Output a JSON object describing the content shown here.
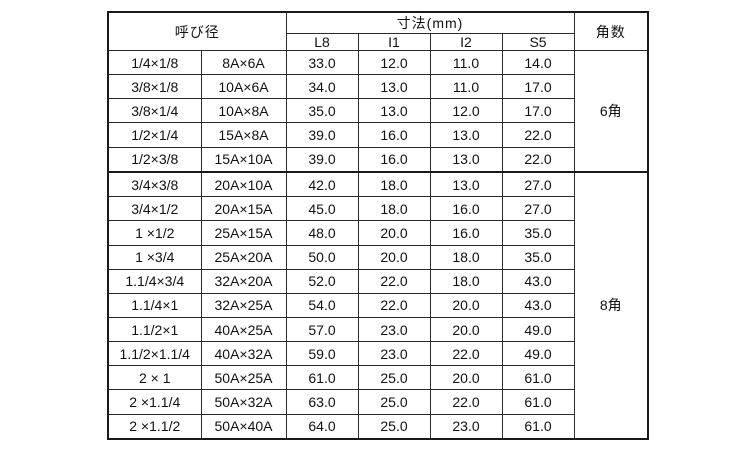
{
  "table": {
    "header": {
      "nominal": "呼び径",
      "dimensions": "寸法(mm)",
      "sub": [
        "L8",
        "I1",
        "I2",
        "S5"
      ],
      "angles": "角数"
    },
    "groups": [
      {
        "angle": "6角",
        "rows": [
          {
            "nominal": "1/4×1/8",
            "a_size": "8A×6A",
            "L8": "33.0",
            "I1": "12.0",
            "I2": "11.0",
            "S5": "14.0"
          },
          {
            "nominal": "3/8×1/8",
            "a_size": "10A×6A",
            "L8": "34.0",
            "I1": "13.0",
            "I2": "11.0",
            "S5": "17.0"
          },
          {
            "nominal": "3/8×1/4",
            "a_size": "10A×8A",
            "L8": "35.0",
            "I1": "13.0",
            "I2": "12.0",
            "S5": "17.0"
          },
          {
            "nominal": "1/2×1/4",
            "a_size": "15A×8A",
            "L8": "39.0",
            "I1": "16.0",
            "I2": "13.0",
            "S5": "22.0"
          },
          {
            "nominal": "1/2×3/8",
            "a_size": "15A×10A",
            "L8": "39.0",
            "I1": "16.0",
            "I2": "13.0",
            "S5": "22.0"
          }
        ]
      },
      {
        "angle": "8角",
        "rows": [
          {
            "nominal": "3/4×3/8",
            "a_size": "20A×10A",
            "L8": "42.0",
            "I1": "18.0",
            "I2": "13.0",
            "S5": "27.0"
          },
          {
            "nominal": "3/4×1/2",
            "a_size": "20A×15A",
            "L8": "45.0",
            "I1": "18.0",
            "I2": "16.0",
            "S5": "27.0"
          },
          {
            "nominal": "1 ×1/2",
            "a_size": "25A×15A",
            "L8": "48.0",
            "I1": "20.0",
            "I2": "16.0",
            "S5": "35.0"
          },
          {
            "nominal": "1 ×3/4",
            "a_size": "25A×20A",
            "L8": "50.0",
            "I1": "20.0",
            "I2": "18.0",
            "S5": "35.0"
          },
          {
            "nominal": "1.1/4×3/4",
            "a_size": "32A×20A",
            "L8": "52.0",
            "I1": "22.0",
            "I2": "18.0",
            "S5": "43.0"
          },
          {
            "nominal": "1.1/4×1",
            "a_size": "32A×25A",
            "L8": "54.0",
            "I1": "22.0",
            "I2": "20.0",
            "S5": "43.0"
          },
          {
            "nominal": "1.1/2×1",
            "a_size": "40A×25A",
            "L8": "57.0",
            "I1": "23.0",
            "I2": "20.0",
            "S5": "49.0"
          },
          {
            "nominal": "1.1/2×1.1/4",
            "a_size": "40A×32A",
            "L8": "59.0",
            "I1": "23.0",
            "I2": "22.0",
            "S5": "49.0"
          },
          {
            "nominal": "2 × 1",
            "a_size": "50A×25A",
            "L8": "61.0",
            "I1": "25.0",
            "I2": "20.0",
            "S5": "61.0"
          },
          {
            "nominal": "2 ×1.1/4",
            "a_size": "50A×32A",
            "L8": "63.0",
            "I1": "25.0",
            "I2": "22.0",
            "S5": "61.0"
          },
          {
            "nominal": "2 ×1.1/2",
            "a_size": "50A×40A",
            "L8": "64.0",
            "I1": "25.0",
            "I2": "23.0",
            "S5": "61.0"
          }
        ]
      }
    ]
  }
}
